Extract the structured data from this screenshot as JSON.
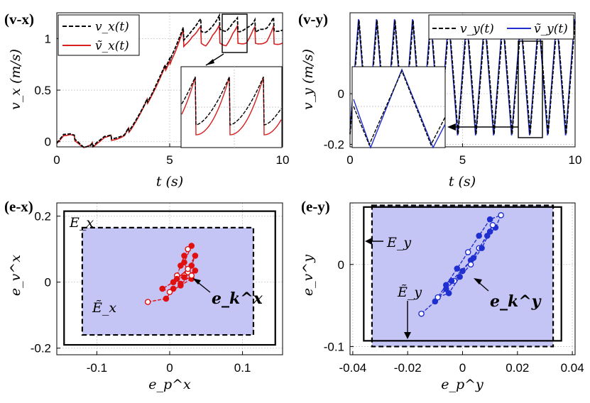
{
  "chart_data": [
    {
      "id": "vx",
      "type": "line",
      "panel_label": "(v-x)",
      "xlabel": "t (s)",
      "ylabel": "v_x (m/s)",
      "xlim": [
        0,
        10
      ],
      "ylim": [
        -0.05,
        1.25
      ],
      "xticks": [
        0,
        5,
        10
      ],
      "yticks": [
        0,
        0.5,
        1
      ],
      "xtick_labels": [
        "0",
        "5",
        "10"
      ],
      "ytick_labels": [
        "0",
        "0.5",
        "1"
      ],
      "legend": [
        "v_x(t)",
        "ṽ_x(t)"
      ],
      "series": [
        {
          "name": "v_x(t)",
          "color": "#000000",
          "dash": true,
          "x": [
            0,
            0.3,
            0.6,
            0.9,
            1.2,
            1.5,
            1.8,
            2.1,
            2.4,
            2.7,
            3.0,
            3.3,
            3.6,
            3.9,
            4.2,
            4.5,
            4.8,
            5.1,
            5.4,
            5.7,
            6.0,
            6.3,
            6.6,
            6.9,
            7.2,
            7.5,
            7.8,
            8.1,
            8.4,
            8.7,
            9.0,
            9.3,
            9.6,
            10.0
          ],
          "y": [
            0.0,
            0.08,
            0.07,
            0.02,
            -0.05,
            -0.05,
            0.01,
            0.05,
            0.04,
            0.05,
            0.06,
            0.15,
            0.25,
            0.35,
            0.47,
            0.6,
            0.72,
            0.87,
            0.97,
            1.05,
            1.1,
            1.12,
            1.1,
            1.12,
            1.14,
            1.1,
            1.13,
            1.11,
            1.12,
            1.1,
            1.13,
            1.1,
            1.12,
            1.1
          ]
        },
        {
          "name": "ṽ_x(t)",
          "color": "#d42020",
          "dash": false,
          "x": [
            0,
            0.3,
            0.6,
            0.9,
            1.2,
            1.5,
            1.8,
            2.1,
            2.4,
            2.7,
            3.0,
            3.3,
            3.6,
            3.9,
            4.2,
            4.5,
            4.8,
            5.1,
            5.4,
            5.7,
            6.0,
            6.3,
            6.6,
            6.9,
            7.2,
            7.5,
            7.8,
            8.1,
            8.4,
            8.7,
            9.0,
            9.3,
            9.6,
            10.0
          ],
          "y": [
            0.0,
            0.07,
            0.06,
            0.01,
            -0.05,
            -0.05,
            0.0,
            0.04,
            0.03,
            0.04,
            0.05,
            0.14,
            0.24,
            0.34,
            0.46,
            0.58,
            0.7,
            0.84,
            0.93,
            1.0,
            1.04,
            1.03,
            0.98,
            1.03,
            1.02,
            0.97,
            1.02,
            1.01,
            0.98,
            1.02,
            1.0,
            0.97,
            1.01,
            0.98
          ]
        }
      ]
    },
    {
      "id": "vy",
      "type": "line",
      "panel_label": "(v-y)",
      "xlabel": "t (s)",
      "ylabel": "v_y (m/s)",
      "xlim": [
        0,
        10
      ],
      "ylim": [
        -0.21,
        0.32
      ],
      "xticks": [
        0,
        5,
        10
      ],
      "yticks": [
        -0.2,
        0
      ],
      "xtick_labels": [
        "0",
        "5",
        "10"
      ],
      "ytick_labels": [
        "-0.2",
        "0"
      ],
      "legend": [
        "v_y(t)",
        "ṽ_y(t)"
      ],
      "period": 0.8,
      "amplitude": [
        -0.17,
        0.3
      ],
      "series": [
        {
          "name": "v_y(t)",
          "color": "#000000",
          "dash": true
        },
        {
          "name": "ṽ_y(t)",
          "color": "#1f2fd0",
          "dash": false
        }
      ]
    },
    {
      "id": "ex",
      "type": "scatter",
      "panel_label": "(e-x)",
      "xlabel": "e_p^x",
      "ylabel": "e_v^x",
      "xlim": [
        -0.155,
        0.155
      ],
      "ylim": [
        -0.22,
        0.24
      ],
      "xticks": [
        -0.1,
        0,
        0.1
      ],
      "yticks": [
        -0.2,
        0,
        0.2
      ],
      "xtick_labels": [
        "-0.1",
        "0",
        "0.1"
      ],
      "ytick_labels": [
        "-0.2",
        "0",
        "0.2"
      ],
      "outer_set": {
        "label": "E_x",
        "x": [
          -0.145,
          0.145
        ],
        "y": [
          -0.19,
          0.215
        ]
      },
      "inner_set": {
        "label": "Ẽ_x",
        "x": [
          -0.12,
          0.115
        ],
        "y": [
          -0.16,
          0.165
        ]
      },
      "trajectory_label": "e_k^x",
      "color": "#e01010",
      "points": [
        [
          -0.03,
          -0.06
        ],
        [
          -0.005,
          -0.05
        ],
        [
          0.005,
          -0.02
        ],
        [
          0.01,
          0.02
        ],
        [
          0.015,
          0.05
        ],
        [
          0.02,
          0.08
        ],
        [
          0.025,
          0.1
        ],
        [
          0.03,
          0.11
        ],
        [
          0.02,
          0.06
        ],
        [
          0.025,
          0.03
        ],
        [
          0.03,
          0.01
        ],
        [
          0.015,
          -0.01
        ],
        [
          0.0,
          -0.03
        ],
        [
          -0.01,
          -0.02
        ],
        [
          0.005,
          0.0
        ],
        [
          0.02,
          0.02
        ],
        [
          0.03,
          0.05
        ],
        [
          0.035,
          0.08
        ],
        [
          0.025,
          0.04
        ],
        [
          0.01,
          0.01
        ],
        [
          0.015,
          -0.005
        ],
        [
          0.03,
          0.02
        ],
        [
          0.035,
          0.035
        ],
        [
          0.02,
          0.015
        ]
      ]
    },
    {
      "id": "ey",
      "type": "scatter",
      "panel_label": "(e-y)",
      "xlabel": "e_p^y",
      "ylabel": "e_v^y",
      "xlim": [
        -0.041,
        0.041
      ],
      "ylim": [
        -0.11,
        0.075
      ],
      "xticks": [
        -0.04,
        -0.02,
        0,
        0.02,
        0.04
      ],
      "yticks": [
        -0.1,
        0
      ],
      "xtick_labels": [
        "-0.04",
        "-0.02",
        "0",
        "0.02",
        "0.04"
      ],
      "ytick_labels": [
        "-0.1",
        "0"
      ],
      "outer_set": {
        "label": "E_y",
        "x": [
          -0.036,
          0.036
        ],
        "y": [
          -0.093,
          0.07
        ]
      },
      "inner_set": {
        "label": "Ẽ_y",
        "x": [
          -0.033,
          0.033
        ],
        "y": [
          -0.1,
          0.072
        ]
      },
      "trajectory_label": "e_k^y",
      "color": "#1f2fd0",
      "points": [
        [
          -0.015,
          -0.06
        ],
        [
          -0.01,
          -0.045
        ],
        [
          -0.006,
          -0.03
        ],
        [
          -0.003,
          -0.02
        ],
        [
          0.0,
          -0.008
        ],
        [
          0.003,
          0.005
        ],
        [
          0.006,
          0.02
        ],
        [
          0.009,
          0.035
        ],
        [
          0.012,
          0.045
        ],
        [
          0.014,
          0.06
        ],
        [
          0.01,
          0.055
        ],
        [
          0.006,
          0.035
        ],
        [
          0.002,
          0.015
        ],
        [
          -0.002,
          -0.005
        ],
        [
          -0.006,
          -0.025
        ],
        [
          -0.009,
          -0.04
        ],
        [
          -0.005,
          -0.035
        ],
        [
          -0.001,
          -0.015
        ],
        [
          0.003,
          0.0
        ],
        [
          0.007,
          0.02
        ],
        [
          0.01,
          0.04
        ],
        [
          0.011,
          0.048
        ],
        [
          0.004,
          0.008
        ],
        [
          -0.004,
          -0.02
        ]
      ]
    }
  ]
}
